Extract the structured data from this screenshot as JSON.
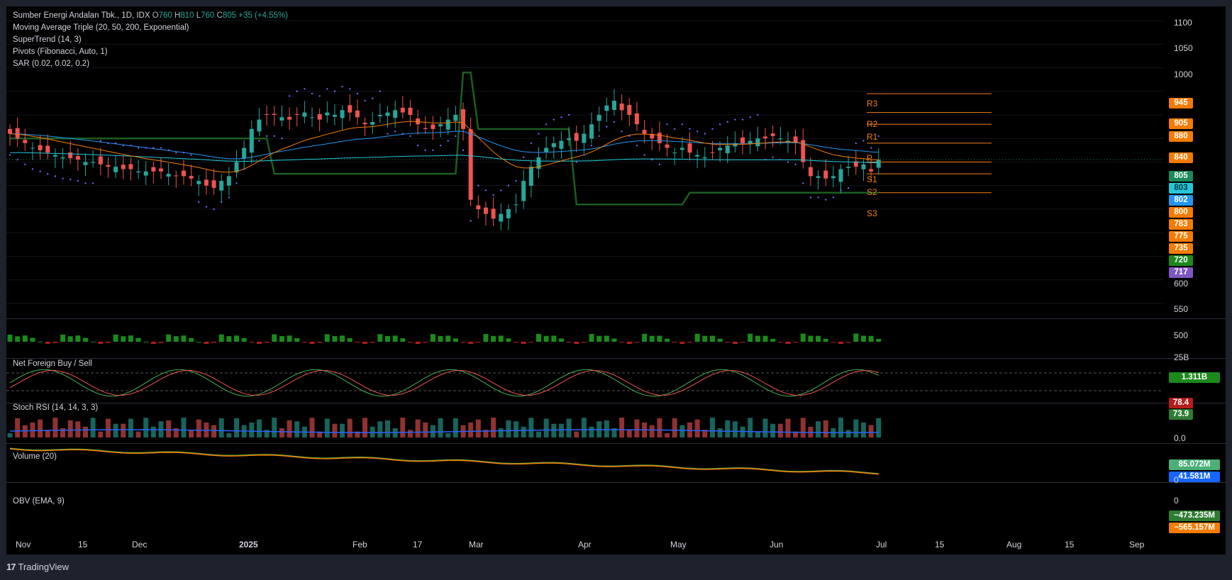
{
  "symbol": {
    "name": "Sumber Energi Andalan Tbk.",
    "interval": "1D",
    "exchange": "IDX",
    "open_key": "O",
    "open": "760",
    "high_key": "H",
    "high": "810",
    "low_key": "L",
    "low": "760",
    "close_key": "C",
    "close": "805",
    "change": "+35 (+4.55%)"
  },
  "indicators": [
    "Moving Average Triple (20, 50, 200, Exponential)",
    "SuperTrend (14, 3)",
    "Pivots (Fibonacci, Auto, 1)",
    "SAR (0.02, 0.02, 0.2)"
  ],
  "panes": {
    "foreign": {
      "title": "Net Foreign Buy / Sell",
      "axis_top": "25B",
      "value": "1.311B"
    },
    "stoch": {
      "title": "Stoch RSI (14, 14, 3, 3)",
      "k_value": "78.4",
      "d_value": "73.9",
      "axis_bottom": "0.0"
    },
    "volume": {
      "title": "Volume (20)",
      "value": "85.072M",
      "ma_value": "41.581M",
      "axis_bottom": "0"
    },
    "obv": {
      "title": "OBV (EMA, 9)",
      "value": "−473.235M",
      "ema_value": "−565.157M",
      "axis_top": "0"
    }
  },
  "price_axis": [
    "1100",
    "1050",
    "1000",
    "600",
    "550",
    "500"
  ],
  "price_tags": [
    {
      "value": "945",
      "color": "#f57c00"
    },
    {
      "value": "905",
      "color": "#f57c00"
    },
    {
      "value": "880",
      "color": "#f57c00"
    },
    {
      "value": "840",
      "color": "#f57c00"
    },
    {
      "value": "805",
      "color": "#1b8a5a"
    },
    {
      "value": "803",
      "color": "#26c6da"
    },
    {
      "value": "802",
      "color": "#2196f3"
    },
    {
      "value": "800",
      "color": "#f57c00"
    },
    {
      "value": "783",
      "color": "#f57c00"
    },
    {
      "value": "775",
      "color": "#f57c00"
    },
    {
      "value": "735",
      "color": "#f57c00"
    },
    {
      "value": "720",
      "color": "#1b8a1b"
    },
    {
      "value": "717",
      "color": "#7e57c2"
    }
  ],
  "pivots": [
    {
      "label": "R3",
      "price": 945
    },
    {
      "label": "R2",
      "price": 905
    },
    {
      "label": "R1",
      "price": 880
    },
    {
      "label": "P",
      "price": 840
    },
    {
      "label": "S1",
      "price": 800
    },
    {
      "label": "S2",
      "price": 775
    },
    {
      "label": "S3",
      "price": 735
    }
  ],
  "time_axis": [
    "Nov",
    "15",
    "Dec",
    "2025",
    "Feb",
    "17",
    "Mar",
    "Apr",
    "May",
    "Jun",
    "Jul",
    "15",
    "Aug",
    "15",
    "Sep"
  ],
  "footer": {
    "brand": "TradingView"
  },
  "colors": {
    "up": "#26a69a",
    "down": "#ef5350",
    "ema20": "#f57c00",
    "ema50": "#2196f3",
    "ema200": "#26c6da",
    "supertrend_up": "#1b5e20",
    "supertrend_down": "#7f0000",
    "sar": "#7b61ff",
    "pivot": "#f57f17"
  },
  "chart_data": {
    "type": "candlestick",
    "symbol": "Sumber Energi Andalan Tbk.",
    "last": {
      "open": 760,
      "high": 810,
      "low": 760,
      "close": 805
    },
    "ylim": [
      480,
      1110
    ],
    "closes_approx": [
      860,
      850,
      840,
      830,
      825,
      820,
      815,
      810,
      808,
      805,
      800,
      800,
      795,
      790,
      790,
      785,
      785,
      780,
      780,
      780,
      780,
      775,
      770,
      770,
      765,
      760,
      750,
      745,
      760,
      770,
      800,
      830,
      870,
      890,
      900,
      900,
      895,
      890,
      900,
      905,
      895,
      890,
      905,
      900,
      910,
      905,
      895,
      880,
      885,
      900,
      905,
      910,
      905,
      900,
      880,
      870,
      870,
      880,
      890,
      900,
      870,
      720,
      700,
      690,
      680,
      690,
      700,
      710,
      760,
      790,
      810,
      830,
      840,
      845,
      850,
      845,
      860,
      880,
      900,
      920,
      930,
      910,
      900,
      880,
      860,
      850,
      840,
      830,
      820,
      830,
      820,
      815,
      810,
      820,
      830,
      835,
      840,
      840,
      845,
      850,
      850,
      855,
      850,
      845,
      840,
      800,
      770,
      770,
      765,
      770,
      785,
      790,
      790,
      795,
      780,
      805
    ]
  }
}
